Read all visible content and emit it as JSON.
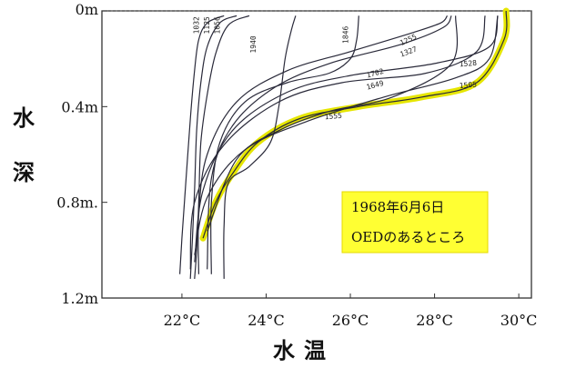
{
  "chart_data": {
    "type": "line",
    "xlabel": "水温",
    "ylabel": "水深",
    "xlim": [
      20.1,
      30.3
    ],
    "ylim": [
      0,
      1.2
    ],
    "y_reversed": true,
    "x_ticks": [
      "22°C",
      "24°C",
      "26°C",
      "28°C",
      "30°C"
    ],
    "x_tick_values": [
      22,
      24,
      26,
      28,
      30
    ],
    "y_ticks": [
      "0m",
      "0.4m",
      "0.8m.",
      "1.2m"
    ],
    "y_tick_values": [
      0,
      0.4,
      0.8,
      1.2
    ],
    "grid": false,
    "colors": {
      "line": "#2a2a3a",
      "highlight": "#e6e600",
      "box": "#ffff33"
    },
    "annotation": {
      "line1": "1968年6月6日",
      "line2": "OEDのあるところ"
    },
    "series": [
      {
        "name": "1032",
        "x": [
          23.0,
          22.6,
          22.4,
          22.3,
          22.2,
          22.1,
          22.0,
          21.95
        ],
        "y": [
          0.02,
          0.05,
          0.12,
          0.25,
          0.45,
          0.7,
          0.95,
          1.1
        ]
      },
      {
        "name": "1125",
        "x": [
          23.3,
          22.9,
          22.6,
          22.45,
          22.35,
          22.3,
          22.25,
          22.2
        ],
        "y": [
          0.02,
          0.05,
          0.15,
          0.3,
          0.5,
          0.75,
          0.95,
          1.12
        ]
      },
      {
        "name": "1056",
        "x": [
          23.6,
          23.1,
          22.8,
          22.6,
          22.45,
          22.4,
          22.35,
          22.3
        ],
        "y": [
          0.02,
          0.06,
          0.18,
          0.35,
          0.55,
          0.8,
          1.0,
          1.12
        ]
      },
      {
        "name": "1940",
        "x": [
          24.7,
          24.6,
          24.45,
          24.3,
          24.1,
          23.6,
          23.1,
          23.0,
          23.0
        ],
        "y": [
          0.02,
          0.08,
          0.2,
          0.4,
          0.55,
          0.65,
          0.72,
          0.9,
          1.12
        ]
      },
      {
        "name": "1846",
        "x": [
          26.2,
          26.15,
          26.0,
          25.5,
          24.5,
          23.5,
          22.9,
          22.7,
          22.7
        ],
        "y": [
          0.02,
          0.12,
          0.2,
          0.26,
          0.3,
          0.38,
          0.55,
          0.8,
          1.1
        ]
      },
      {
        "name": "1255",
        "x": [
          28.3,
          28.15,
          27.5,
          26.0,
          24.5,
          23.3,
          22.6,
          22.4,
          22.4
        ],
        "y": [
          0.02,
          0.05,
          0.09,
          0.17,
          0.25,
          0.38,
          0.6,
          0.85,
          1.1
        ]
      },
      {
        "name": "1327",
        "x": [
          28.4,
          28.2,
          27.2,
          25.5,
          24.2,
          23.2,
          22.7,
          22.6
        ],
        "y": [
          0.02,
          0.07,
          0.14,
          0.22,
          0.32,
          0.48,
          0.7,
          1.08
        ]
      },
      {
        "name": "1702",
        "x": [
          29.5,
          29.3,
          28.0,
          26.0,
          24.5,
          23.2,
          22.5,
          22.3
        ],
        "y": [
          0.02,
          0.15,
          0.22,
          0.27,
          0.34,
          0.5,
          0.75,
          1.05
        ]
      },
      {
        "name": "1649",
        "x": [
          29.2,
          29.0,
          27.8,
          25.8,
          24.3,
          23.0,
          22.3,
          22.2
        ],
        "y": [
          0.02,
          0.17,
          0.26,
          0.3,
          0.38,
          0.56,
          0.8,
          1.08
        ]
      },
      {
        "name": "1528",
        "x": [
          29.5,
          29.3,
          28.5,
          26.8,
          25.0,
          23.5,
          22.6,
          22.3
        ],
        "y": [
          0.02,
          0.2,
          0.28,
          0.36,
          0.46,
          0.58,
          0.78,
          1.02
        ]
      },
      {
        "name": "1555",
        "x": [
          28.5,
          28.4,
          27.0,
          25.5,
          24.3,
          23.3,
          22.6
        ],
        "y": [
          0.02,
          0.22,
          0.36,
          0.42,
          0.5,
          0.62,
          0.92
        ]
      },
      {
        "name": "1505",
        "x": [
          29.7,
          29.65,
          29.0,
          27.7,
          26.2,
          24.8,
          23.8,
          23.2,
          22.8,
          22.5
        ],
        "y": [
          0.0,
          0.12,
          0.3,
          0.36,
          0.4,
          0.45,
          0.55,
          0.68,
          0.8,
          0.95
        ],
        "highlight": true
      }
    ],
    "labels": [
      {
        "text": "1032",
        "x": 22.4,
        "y": 0.06,
        "rotate": -90
      },
      {
        "text": "1125",
        "x": 22.65,
        "y": 0.06,
        "rotate": -90
      },
      {
        "text": "1056",
        "x": 22.9,
        "y": 0.06,
        "rotate": -90
      },
      {
        "text": "1940",
        "x": 23.75,
        "y": 0.14,
        "rotate": -90
      },
      {
        "text": "1846",
        "x": 25.95,
        "y": 0.1,
        "rotate": -90
      },
      {
        "text": "1255",
        "x": 27.4,
        "y": 0.13,
        "rotate": -25
      },
      {
        "text": "1327",
        "x": 27.4,
        "y": 0.18,
        "rotate": -20
      },
      {
        "text": "1702",
        "x": 26.6,
        "y": 0.27,
        "rotate": -15
      },
      {
        "text": "1649",
        "x": 26.6,
        "y": 0.32,
        "rotate": -15
      },
      {
        "text": "1528",
        "x": 28.8,
        "y": 0.23,
        "rotate": -5
      },
      {
        "text": "1505",
        "x": 28.8,
        "y": 0.32,
        "rotate": -5
      },
      {
        "text": "1555",
        "x": 25.6,
        "y": 0.45,
        "rotate": -5
      }
    ]
  }
}
